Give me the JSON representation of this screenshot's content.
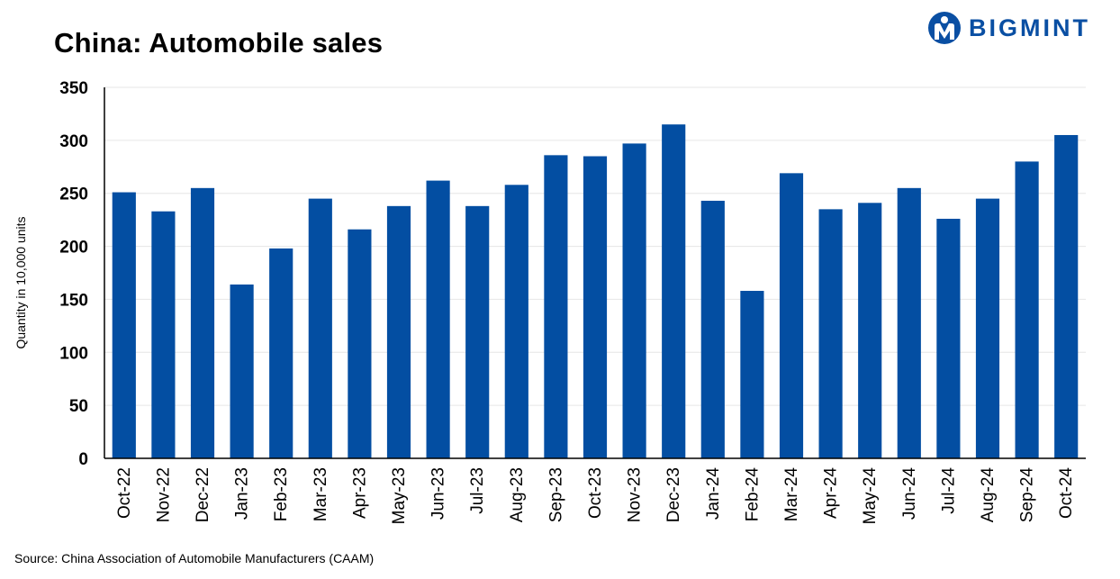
{
  "logo": {
    "text": "BIGMINT",
    "color": "#0a4fa3"
  },
  "source": "Source: China Association of Automobile Manufacturers (CAAM)",
  "chart_data": {
    "type": "bar",
    "title": "China: Automobile sales",
    "xlabel": "",
    "ylabel": "Quantity in 10,000 units",
    "ylim": [
      0,
      350
    ],
    "yticks": [
      0,
      50,
      100,
      150,
      200,
      250,
      300,
      350
    ],
    "grid": true,
    "bar_color": "#034ea2",
    "categories": [
      "Oct-22",
      "Nov-22",
      "Dec-22",
      "Jan-23",
      "Feb-23",
      "Mar-23",
      "Apr-23",
      "May-23",
      "Jun-23",
      "Jul-23",
      "Aug-23",
      "Sep-23",
      "Oct-23",
      "Nov-23",
      "Dec-23",
      "Jan-24",
      "Feb-24",
      "Mar-24",
      "Apr-24",
      "May-24",
      "Jun-24",
      "Jul-24",
      "Aug-24",
      "Sep-24",
      "Oct-24"
    ],
    "values": [
      251,
      233,
      255,
      164,
      198,
      245,
      216,
      238,
      262,
      238,
      258,
      286,
      285,
      297,
      315,
      243,
      158,
      269,
      235,
      241,
      255,
      226,
      245,
      280,
      305
    ]
  }
}
